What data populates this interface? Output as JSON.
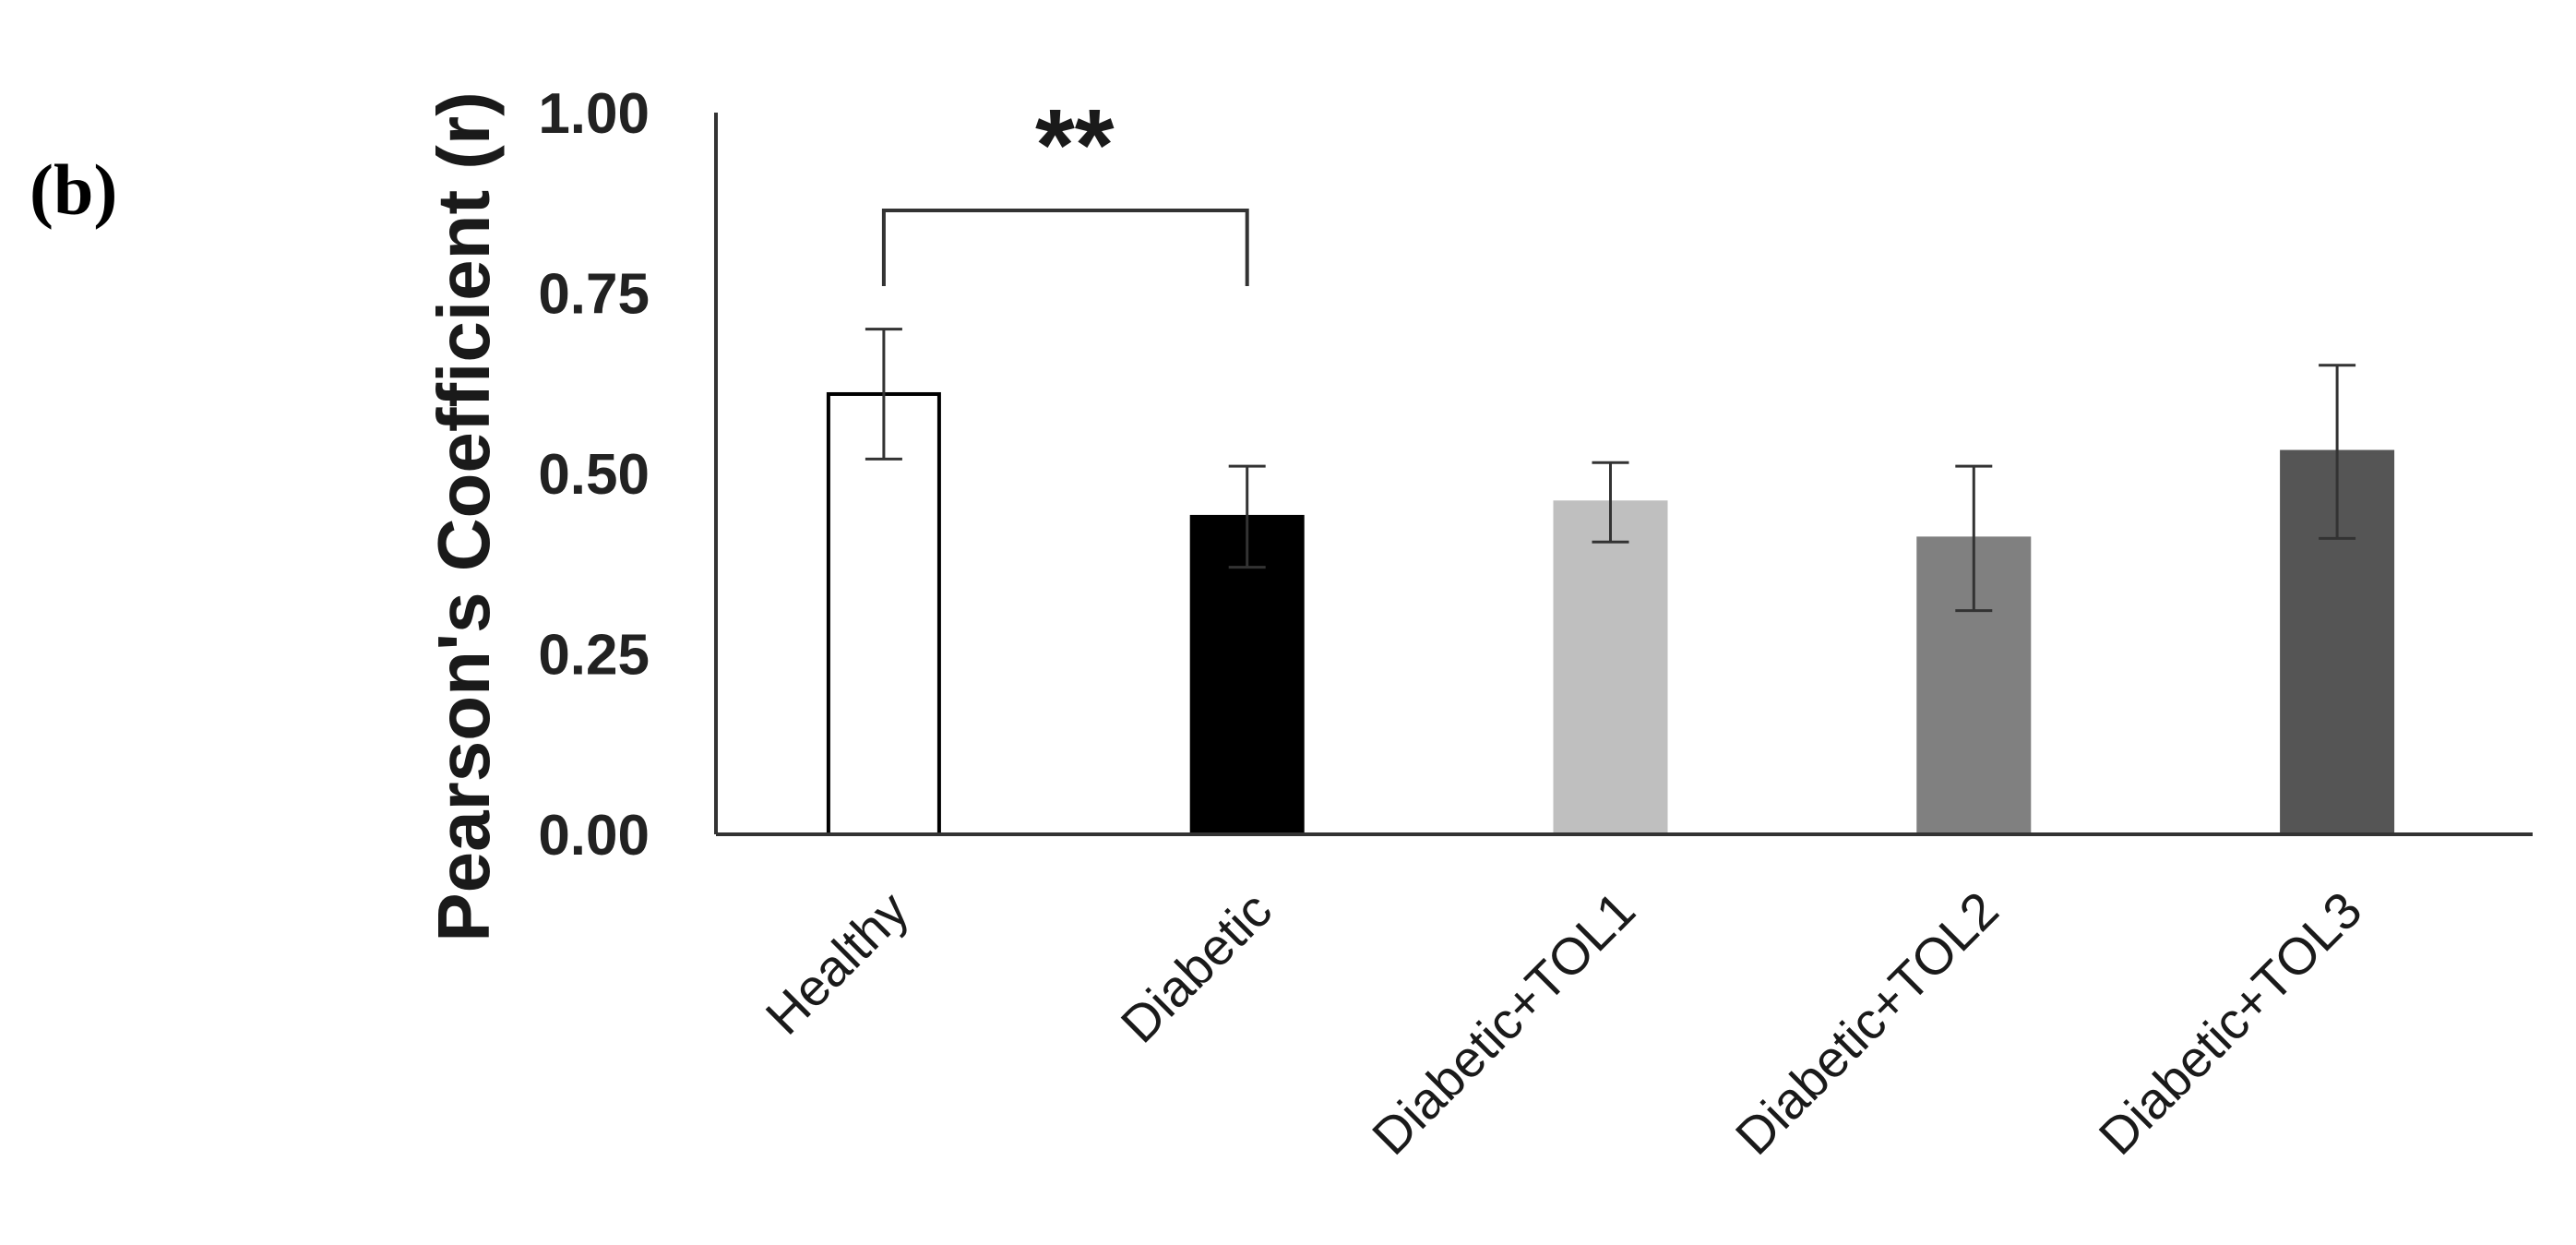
{
  "panel_label": "(b)",
  "chart_data": {
    "type": "bar",
    "title": "",
    "xlabel": "",
    "ylabel": "Pearson's Coefficient (r)",
    "ylim": [
      0,
      1
    ],
    "yticks": [
      "0.00",
      "0.25",
      "0.50",
      "0.75",
      "1.00"
    ],
    "grid": false,
    "legend": "none",
    "categories": [
      "Healthy",
      "Diabetic",
      "Diabetic+TOL1",
      "Diabetic+TOL2",
      "Diabetic+TOL3"
    ],
    "values": [
      0.61,
      0.44,
      0.46,
      0.41,
      0.53
    ],
    "errors": [
      0.09,
      0.07,
      0.055,
      0.1,
      0.12
    ],
    "bar_colors": [
      "#ffffff",
      "#000000",
      "#bfbfbf",
      "#808080",
      "#555555"
    ],
    "annotations": [
      {
        "text": "**",
        "from": "Healthy",
        "to": "Diabetic"
      }
    ]
  }
}
